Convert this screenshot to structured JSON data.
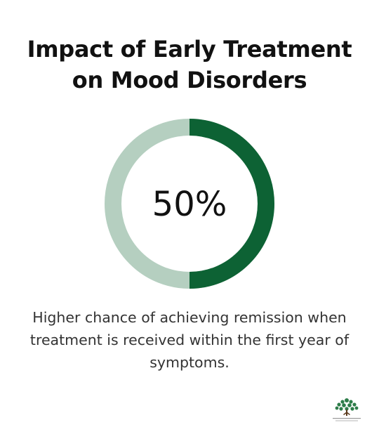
{
  "chart_data": {
    "type": "pie",
    "title_lines": [
      "Impact of Early Treatment",
      "on Mood Disorders"
    ],
    "value": 50,
    "max": 100,
    "center_label": "50%",
    "caption_lines": [
      "Higher chance of achieving remission when",
      "treatment is received within the first year of",
      "symptoms."
    ],
    "colors": {
      "filled": "#0d6234",
      "remaining": "#b5cfc0"
    }
  },
  "logo": {
    "icon": "tree-logo-icon"
  }
}
